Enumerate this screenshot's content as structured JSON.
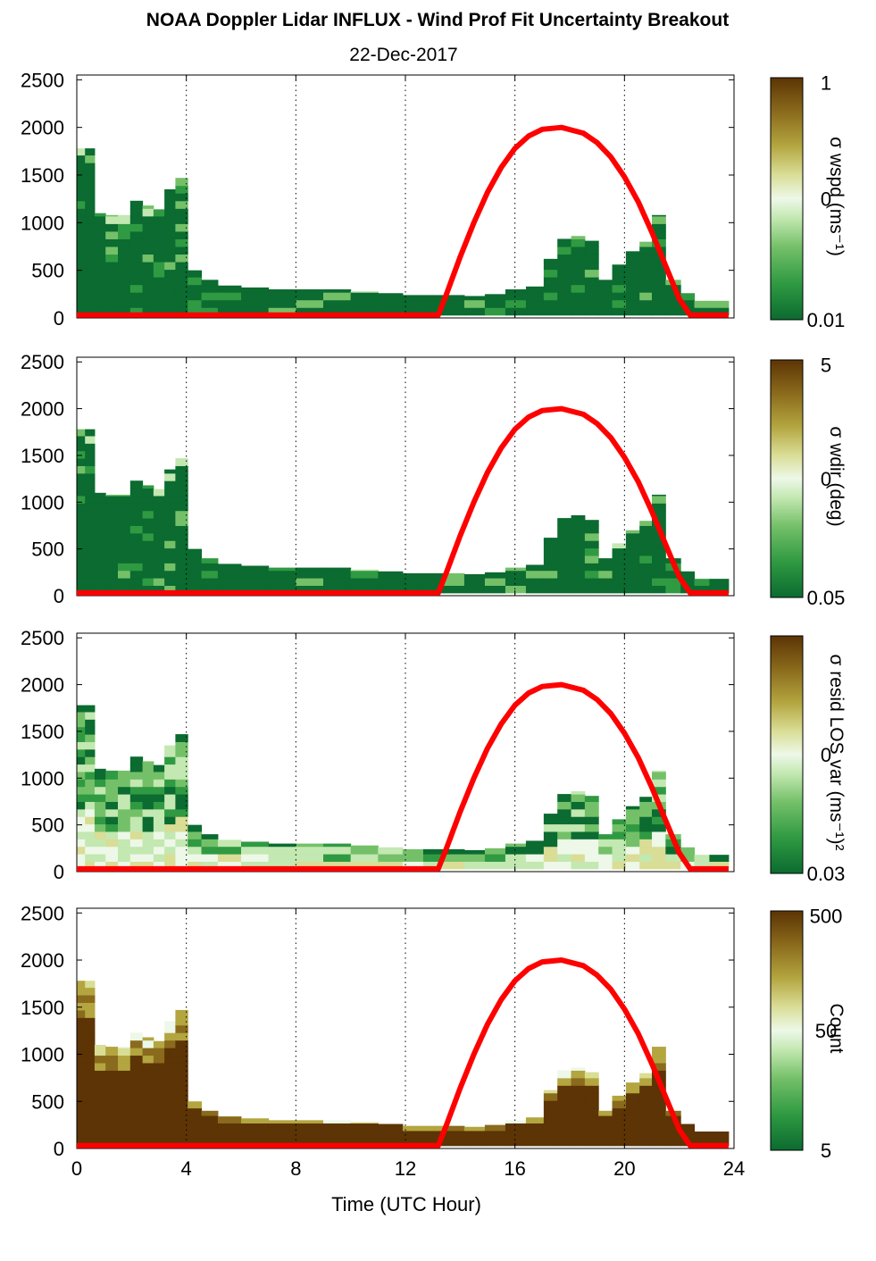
{
  "title": "NOAA Doppler Lidar INFLUX - Wind Prof Fit Uncertainty Breakout",
  "subtitle": "22-Dec-2017",
  "colors": {
    "sun_curve": "#ff0000",
    "colormap": [
      "#0b6b30",
      "#2f9a42",
      "#74c069",
      "#c3e8b1",
      "#edf8e8",
      "#d9dd95",
      "#b3a53f",
      "#8a6a1c",
      "#5c3405"
    ]
  },
  "chart_data": [
    {
      "type": "heatmap",
      "title": "",
      "xlabel": "",
      "ylabel": "",
      "xlim": [
        0,
        24
      ],
      "ylim": [
        0,
        2550
      ],
      "x_ticks": [
        "0",
        "4",
        "8",
        "12",
        "16",
        "20",
        "24"
      ],
      "y_ticks": [
        "0",
        "500",
        "1000",
        "1500",
        "2000",
        "2500"
      ],
      "grid": "dotted vertical at 4, 8, 12, 16, 20, 24 h",
      "colorbar": {
        "label": "σ wspd (ms⁻¹)",
        "ticks": [
          "1",
          "0",
          "0.01"
        ],
        "scale": "log"
      },
      "field_tone": "mostly low",
      "columns": [
        {
          "x": 0.1,
          "top": 1780
        },
        {
          "x": 0.5,
          "top": 1780
        },
        {
          "x": 0.8,
          "top": 1100
        },
        {
          "x": 1.3,
          "top": 1080
        },
        {
          "x": 1.7,
          "top": 1080
        },
        {
          "x": 2.2,
          "top": 1230
        },
        {
          "x": 2.6,
          "top": 1180
        },
        {
          "x": 3.0,
          "top": 1140
        },
        {
          "x": 3.4,
          "top": 1350
        },
        {
          "x": 3.8,
          "top": 1470
        },
        {
          "x": 4.3,
          "top": 500
        },
        {
          "x": 4.8,
          "top": 400
        },
        {
          "x": 5.5,
          "top": 340
        },
        {
          "x": 6.5,
          "top": 320
        },
        {
          "x": 7.5,
          "top": 300
        },
        {
          "x": 8.5,
          "top": 300
        },
        {
          "x": 9.5,
          "top": 300
        },
        {
          "x": 10.5,
          "top": 280
        },
        {
          "x": 11.5,
          "top": 260
        },
        {
          "x": 12.3,
          "top": 240
        },
        {
          "x": 13.0,
          "top": 240
        },
        {
          "x": 13.8,
          "top": 240
        },
        {
          "x": 14.5,
          "top": 230
        },
        {
          "x": 15.3,
          "top": 250
        },
        {
          "x": 16.0,
          "top": 300
        },
        {
          "x": 16.8,
          "top": 330
        },
        {
          "x": 17.3,
          "top": 620
        },
        {
          "x": 17.8,
          "top": 830
        },
        {
          "x": 18.3,
          "top": 860
        },
        {
          "x": 18.8,
          "top": 810
        },
        {
          "x": 19.3,
          "top": 400
        },
        {
          "x": 19.8,
          "top": 560
        },
        {
          "x": 20.3,
          "top": 700
        },
        {
          "x": 20.8,
          "top": 800
        },
        {
          "x": 21.2,
          "top": 1080
        },
        {
          "x": 21.8,
          "top": 400
        },
        {
          "x": 22.3,
          "top": 260
        },
        {
          "x": 22.8,
          "top": 180
        },
        {
          "x": 23.4,
          "top": 180
        }
      ]
    },
    {
      "type": "heatmap",
      "title": "",
      "xlabel": "",
      "ylabel": "",
      "xlim": [
        0,
        24
      ],
      "ylim": [
        0,
        2550
      ],
      "x_ticks": [
        "0",
        "4",
        "8",
        "12",
        "16",
        "20",
        "24"
      ],
      "y_ticks": [
        "0",
        "500",
        "1000",
        "1500",
        "2000",
        "2500"
      ],
      "grid": "dotted vertical at 4, 8, 12, 16, 20, 24 h",
      "colorbar": {
        "label": "σ wdir (deg)",
        "ticks": [
          "5",
          "0",
          "0.05"
        ],
        "scale": "log"
      },
      "field_tone": "mostly low",
      "columns": [
        {
          "x": 0.1,
          "top": 1780
        },
        {
          "x": 0.5,
          "top": 1780
        },
        {
          "x": 0.8,
          "top": 1100
        },
        {
          "x": 1.3,
          "top": 1080
        },
        {
          "x": 1.7,
          "top": 1080
        },
        {
          "x": 2.2,
          "top": 1230
        },
        {
          "x": 2.6,
          "top": 1180
        },
        {
          "x": 3.0,
          "top": 1140
        },
        {
          "x": 3.4,
          "top": 1350
        },
        {
          "x": 3.8,
          "top": 1470
        },
        {
          "x": 4.3,
          "top": 500
        },
        {
          "x": 4.8,
          "top": 400
        },
        {
          "x": 5.5,
          "top": 340
        },
        {
          "x": 6.5,
          "top": 320
        },
        {
          "x": 7.5,
          "top": 300
        },
        {
          "x": 8.5,
          "top": 300
        },
        {
          "x": 9.5,
          "top": 300
        },
        {
          "x": 10.5,
          "top": 280
        },
        {
          "x": 11.5,
          "top": 260
        },
        {
          "x": 12.3,
          "top": 240
        },
        {
          "x": 13.0,
          "top": 240
        },
        {
          "x": 13.8,
          "top": 240
        },
        {
          "x": 14.5,
          "top": 230
        },
        {
          "x": 15.3,
          "top": 250
        },
        {
          "x": 16.0,
          "top": 300
        },
        {
          "x": 16.8,
          "top": 330
        },
        {
          "x": 17.3,
          "top": 620
        },
        {
          "x": 17.8,
          "top": 830
        },
        {
          "x": 18.3,
          "top": 860
        },
        {
          "x": 18.8,
          "top": 810
        },
        {
          "x": 19.3,
          "top": 400
        },
        {
          "x": 19.8,
          "top": 560
        },
        {
          "x": 20.3,
          "top": 700
        },
        {
          "x": 20.8,
          "top": 800
        },
        {
          "x": 21.2,
          "top": 1080
        },
        {
          "x": 21.8,
          "top": 400
        },
        {
          "x": 22.3,
          "top": 260
        },
        {
          "x": 22.8,
          "top": 180
        },
        {
          "x": 23.4,
          "top": 180
        }
      ]
    },
    {
      "type": "heatmap",
      "title": "",
      "xlabel": "",
      "ylabel": "",
      "xlim": [
        0,
        24
      ],
      "ylim": [
        0,
        2550
      ],
      "x_ticks": [
        "0",
        "4",
        "8",
        "12",
        "16",
        "20",
        "24"
      ],
      "y_ticks": [
        "0",
        "500",
        "1000",
        "1500",
        "2000",
        "2500"
      ],
      "grid": "dotted vertical at 4, 8, 12, 16, 20, 24 h",
      "colorbar": {
        "label": "σ resid LOS var (ms⁻¹)²",
        "ticks": [
          "0",
          "0.03"
        ],
        "scale": "log"
      },
      "field_tone": "mixed, light near surface",
      "columns": [
        {
          "x": 0.1,
          "top": 1780
        },
        {
          "x": 0.5,
          "top": 1780
        },
        {
          "x": 0.8,
          "top": 1100
        },
        {
          "x": 1.3,
          "top": 1080
        },
        {
          "x": 1.7,
          "top": 1080
        },
        {
          "x": 2.2,
          "top": 1230
        },
        {
          "x": 2.6,
          "top": 1180
        },
        {
          "x": 3.0,
          "top": 1140
        },
        {
          "x": 3.4,
          "top": 1350
        },
        {
          "x": 3.8,
          "top": 1470
        },
        {
          "x": 4.3,
          "top": 500
        },
        {
          "x": 4.8,
          "top": 400
        },
        {
          "x": 5.5,
          "top": 340
        },
        {
          "x": 6.5,
          "top": 320
        },
        {
          "x": 7.5,
          "top": 300
        },
        {
          "x": 8.5,
          "top": 300
        },
        {
          "x": 9.5,
          "top": 300
        },
        {
          "x": 10.5,
          "top": 280
        },
        {
          "x": 11.5,
          "top": 260
        },
        {
          "x": 12.3,
          "top": 240
        },
        {
          "x": 13.0,
          "top": 240
        },
        {
          "x": 13.8,
          "top": 240
        },
        {
          "x": 14.5,
          "top": 230
        },
        {
          "x": 15.3,
          "top": 250
        },
        {
          "x": 16.0,
          "top": 300
        },
        {
          "x": 16.8,
          "top": 330
        },
        {
          "x": 17.3,
          "top": 620
        },
        {
          "x": 17.8,
          "top": 830
        },
        {
          "x": 18.3,
          "top": 860
        },
        {
          "x": 18.8,
          "top": 810
        },
        {
          "x": 19.3,
          "top": 400
        },
        {
          "x": 19.8,
          "top": 560
        },
        {
          "x": 20.3,
          "top": 700
        },
        {
          "x": 20.8,
          "top": 800
        },
        {
          "x": 21.2,
          "top": 1080
        },
        {
          "x": 21.8,
          "top": 400
        },
        {
          "x": 22.3,
          "top": 260
        },
        {
          "x": 22.8,
          "top": 180
        },
        {
          "x": 23.4,
          "top": 180
        }
      ]
    },
    {
      "type": "heatmap",
      "title": "",
      "xlabel": "Time (UTC Hour)",
      "ylabel": "",
      "xlim": [
        0,
        24
      ],
      "ylim": [
        0,
        2550
      ],
      "x_ticks": [
        "0",
        "4",
        "8",
        "12",
        "16",
        "20",
        "24"
      ],
      "y_ticks": [
        "0",
        "500",
        "1000",
        "1500",
        "2000",
        "2500"
      ],
      "grid": "dotted vertical at 4, 8, 12, 16, 20, 24 h",
      "colorbar": {
        "label": "Count",
        "ticks": [
          "500",
          "50",
          "5"
        ],
        "scale": "log"
      },
      "field_tone": "mostly high",
      "columns": [
        {
          "x": 0.1,
          "top": 1780
        },
        {
          "x": 0.5,
          "top": 1780
        },
        {
          "x": 0.8,
          "top": 1100
        },
        {
          "x": 1.3,
          "top": 1080
        },
        {
          "x": 1.7,
          "top": 1080
        },
        {
          "x": 2.2,
          "top": 1230
        },
        {
          "x": 2.6,
          "top": 1180
        },
        {
          "x": 3.0,
          "top": 1140
        },
        {
          "x": 3.4,
          "top": 1350
        },
        {
          "x": 3.8,
          "top": 1470
        },
        {
          "x": 4.3,
          "top": 500
        },
        {
          "x": 4.8,
          "top": 400
        },
        {
          "x": 5.5,
          "top": 340
        },
        {
          "x": 6.5,
          "top": 320
        },
        {
          "x": 7.5,
          "top": 300
        },
        {
          "x": 8.5,
          "top": 300
        },
        {
          "x": 9.5,
          "top": 300
        },
        {
          "x": 10.5,
          "top": 280
        },
        {
          "x": 11.5,
          "top": 260
        },
        {
          "x": 12.3,
          "top": 240
        },
        {
          "x": 13.0,
          "top": 240
        },
        {
          "x": 13.8,
          "top": 240
        },
        {
          "x": 14.5,
          "top": 230
        },
        {
          "x": 15.3,
          "top": 250
        },
        {
          "x": 16.0,
          "top": 300
        },
        {
          "x": 16.8,
          "top": 330
        },
        {
          "x": 17.3,
          "top": 620
        },
        {
          "x": 17.8,
          "top": 830
        },
        {
          "x": 18.3,
          "top": 860
        },
        {
          "x": 18.8,
          "top": 810
        },
        {
          "x": 19.3,
          "top": 400
        },
        {
          "x": 19.8,
          "top": 560
        },
        {
          "x": 20.3,
          "top": 700
        },
        {
          "x": 20.8,
          "top": 800
        },
        {
          "x": 21.2,
          "top": 1080
        },
        {
          "x": 21.8,
          "top": 400
        },
        {
          "x": 22.3,
          "top": 260
        },
        {
          "x": 22.8,
          "top": 180
        },
        {
          "x": 23.4,
          "top": 180
        }
      ]
    }
  ],
  "sun_elevation_curve": {
    "description_values": "baseline 30 m, rise 13.2 h, peak ~2000 m at 17.7 h, set 22.4 h",
    "x": [
      0,
      13.2,
      13.5,
      14,
      14.5,
      15,
      15.5,
      16,
      16.5,
      17,
      17.7,
      18.5,
      19,
      19.5,
      20,
      20.5,
      21,
      21.5,
      22,
      22.4,
      23.8
    ],
    "y": [
      30,
      30,
      250,
      640,
      1000,
      1320,
      1580,
      1780,
      1910,
      1980,
      2000,
      1940,
      1840,
      1690,
      1480,
      1220,
      900,
      550,
      200,
      30,
      30
    ]
  }
}
